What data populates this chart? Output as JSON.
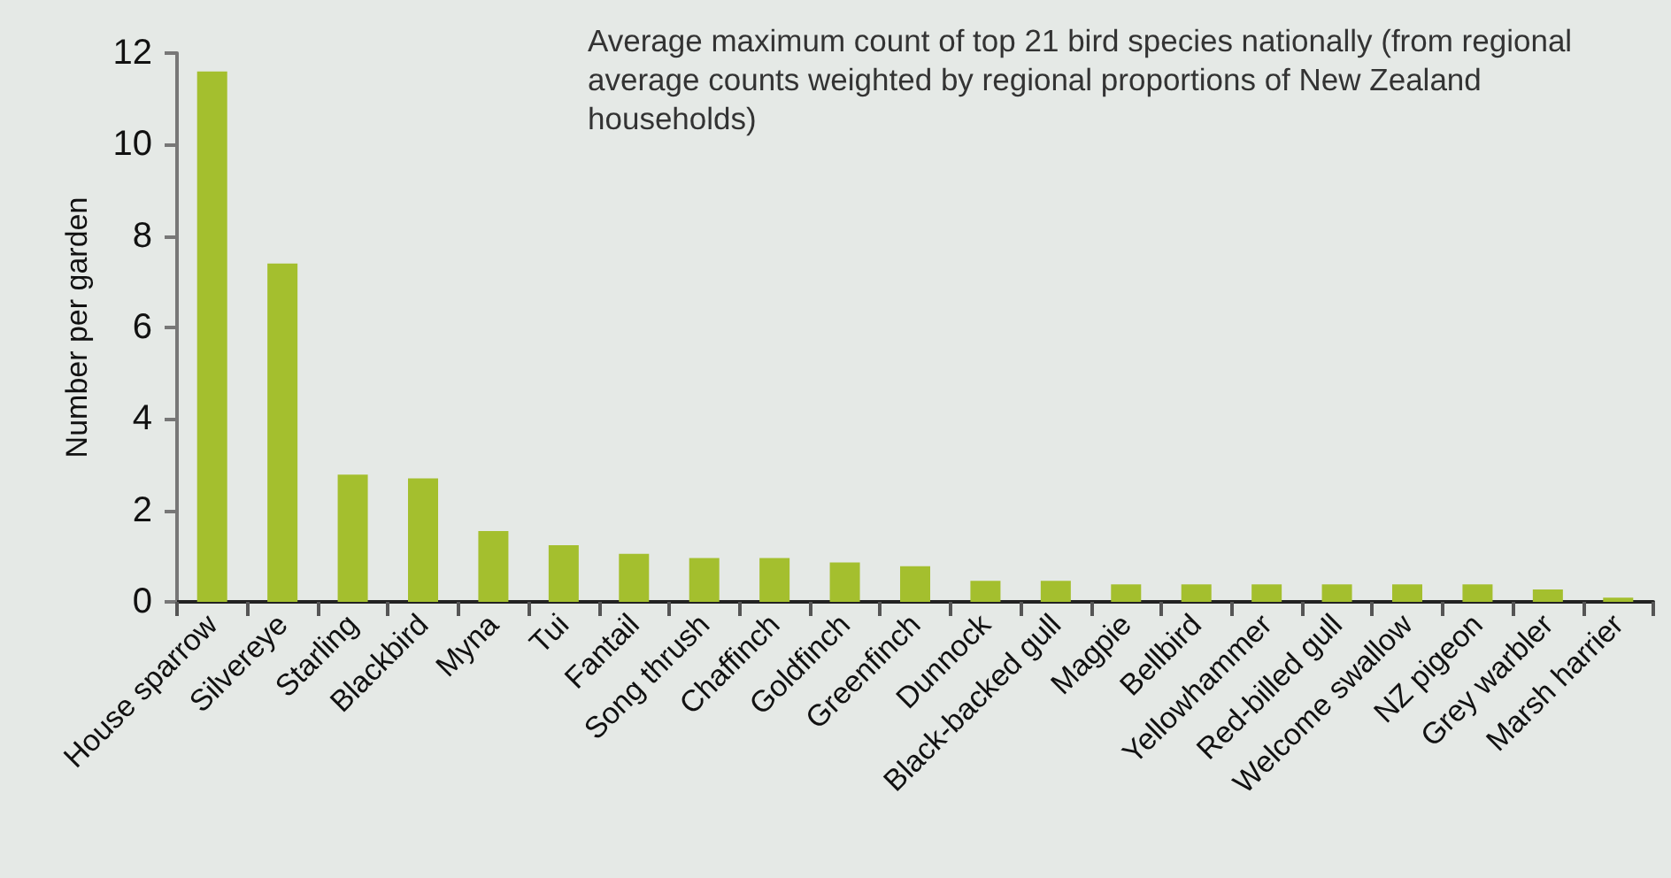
{
  "chart_data": {
    "type": "bar",
    "title": "Average maximum count of top 21 bird species nationally (from regional average counts weighted by regional proportions of New Zealand households)",
    "ylabel": "Number per garden",
    "categories": [
      "House sparrow",
      "Silvereye",
      "Starling",
      "Blackbird",
      "Myna",
      "Tui",
      "Fantail",
      "Song thrush",
      "Chaffinch",
      "Goldfinch",
      "Greenfinch",
      "Dunnock",
      "Black-backed gull",
      "Magpie",
      "Bellbird",
      "Yellowhammer",
      "Red-billed gull",
      "Welcome swallow",
      "NZ pigeon",
      "Grey warbler",
      "Marsh harrier"
    ],
    "values": [
      11.6,
      7.4,
      2.78,
      2.7,
      1.55,
      1.24,
      1.05,
      0.96,
      0.96,
      0.86,
      0.78,
      0.46,
      0.46,
      0.38,
      0.38,
      0.38,
      0.38,
      0.38,
      0.38,
      0.27,
      0.09
    ],
    "color": "#a4bf2e",
    "ylim": [
      0,
      12
    ],
    "yticks": [
      0,
      2,
      4,
      6,
      8,
      10,
      12
    ],
    "grid": false
  }
}
